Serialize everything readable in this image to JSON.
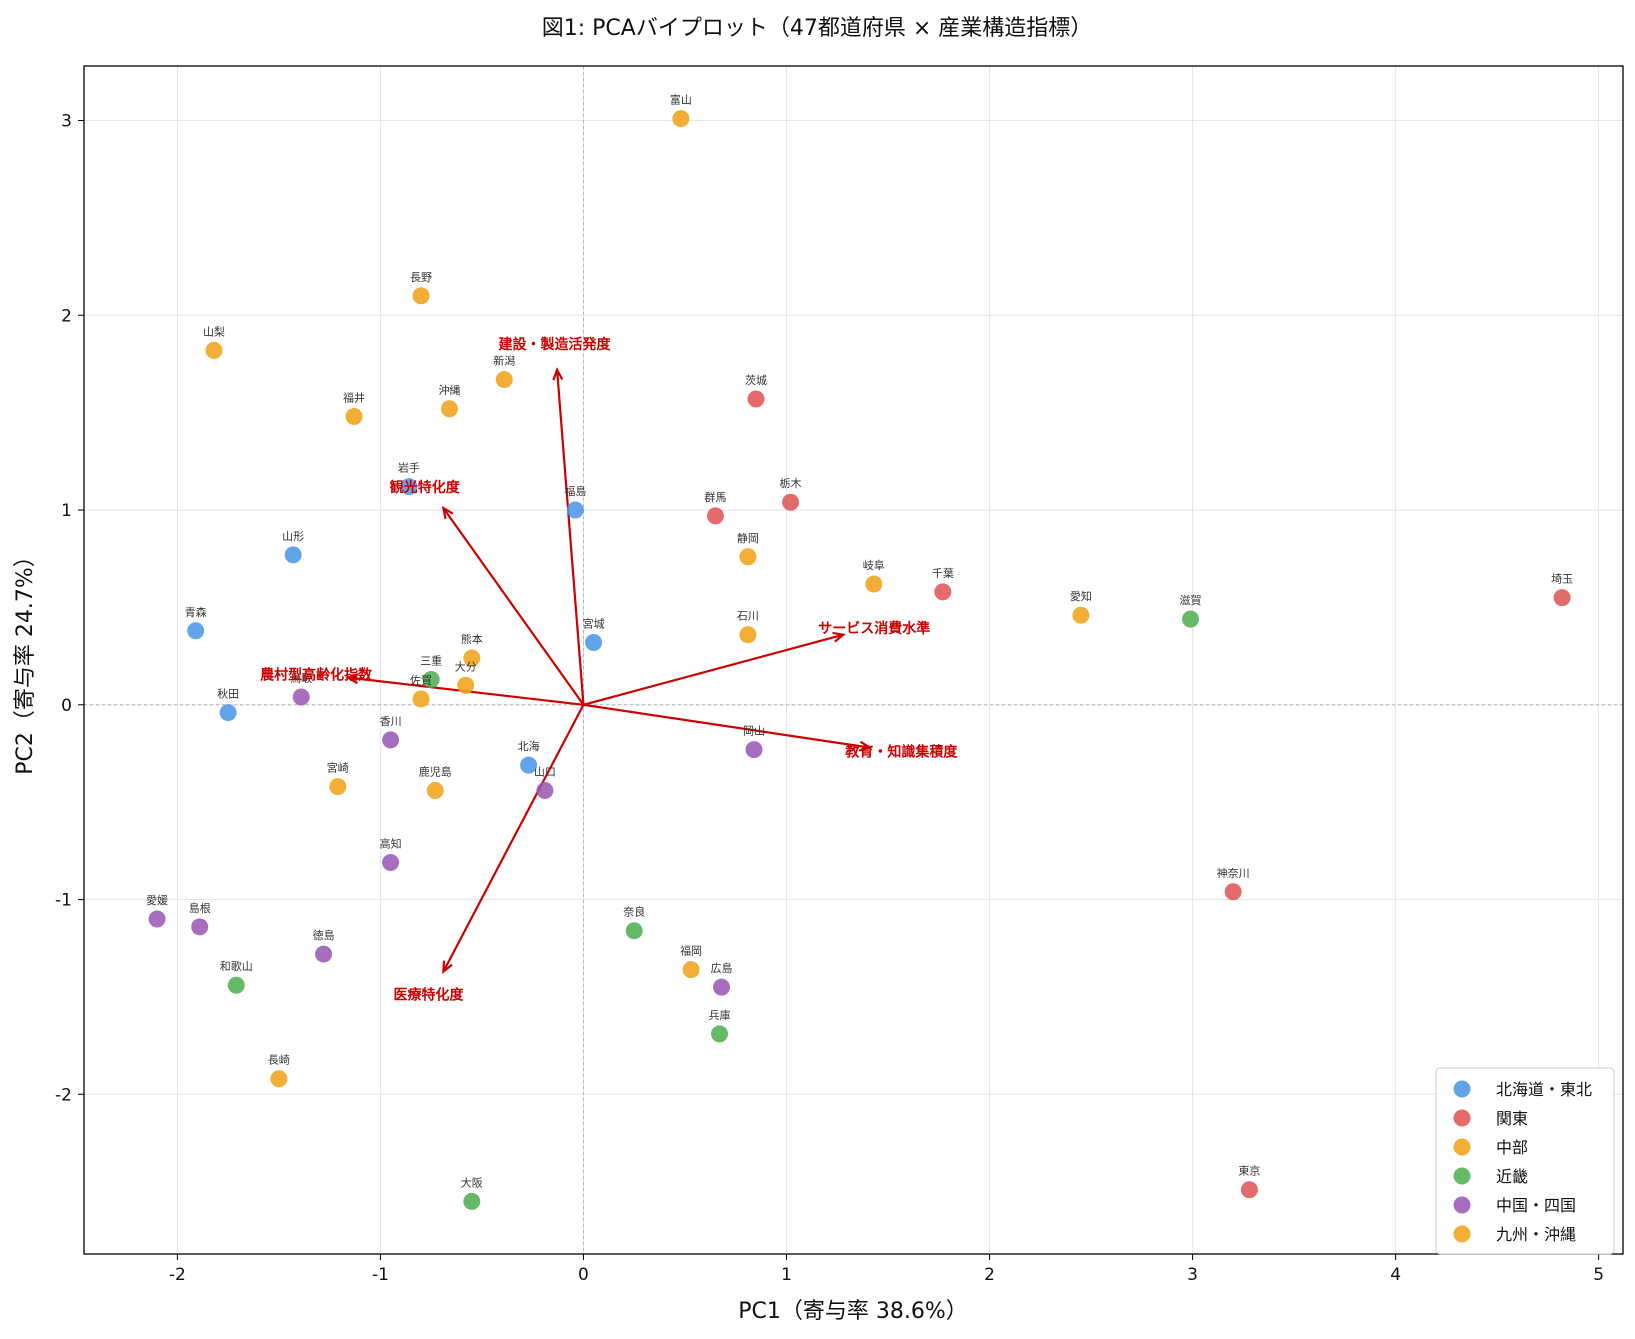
{
  "chart_data": {
    "type": "scatter",
    "title": "図1: PCAバイプロット（47都道府県 × 産業構造指標）",
    "xlabel": "PC1（寄与率 38.6%）",
    "ylabel": "PC2（寄与率 24.7%）",
    "xlim": [
      -2.46,
      5.12
    ],
    "ylim": [
      -2.82,
      3.28
    ],
    "xticks": [
      -2,
      -1,
      0,
      1,
      2,
      3,
      4,
      5
    ],
    "xtick_labels": [
      "-2",
      "-1",
      "0",
      "1",
      "2",
      "3",
      "4",
      "5"
    ],
    "yticks": [
      -2,
      -1,
      0,
      1,
      2,
      3
    ],
    "ytick_labels": [
      "-2",
      "-1",
      "0",
      "1",
      "2",
      "3"
    ],
    "grid": true,
    "reference_lines": {
      "x": 0,
      "y": 0,
      "style": "dashed"
    },
    "legend_position": "bottom-right",
    "series": [
      {
        "name": "北海道・東北",
        "color": "#4c96e6",
        "points": [
          {
            "label": "北海",
            "x": -0.27,
            "y": -0.31
          },
          {
            "label": "青森",
            "x": -1.91,
            "y": 0.38
          },
          {
            "label": "岩手",
            "x": -0.86,
            "y": 1.12
          },
          {
            "label": "宮城",
            "x": 0.05,
            "y": 0.32
          },
          {
            "label": "秋田",
            "x": -1.75,
            "y": -0.04
          },
          {
            "label": "山形",
            "x": -1.43,
            "y": 0.77
          },
          {
            "label": "福島",
            "x": -0.04,
            "y": 1.0
          }
        ]
      },
      {
        "name": "関東",
        "color": "#e05556",
        "points": [
          {
            "label": "茨城",
            "x": 0.85,
            "y": 1.57
          },
          {
            "label": "栃木",
            "x": 1.02,
            "y": 1.04
          },
          {
            "label": "群馬",
            "x": 0.65,
            "y": 0.97
          },
          {
            "label": "埼玉",
            "x": 4.82,
            "y": 0.55
          },
          {
            "label": "千葉",
            "x": 1.77,
            "y": 0.58
          },
          {
            "label": "東京",
            "x": 3.28,
            "y": -2.49
          },
          {
            "label": "神奈川",
            "x": 3.2,
            "y": -0.96
          }
        ]
      },
      {
        "name": "中部",
        "color": "#f0a31a",
        "points": [
          {
            "label": "新潟",
            "x": -0.39,
            "y": 1.67
          },
          {
            "label": "富山",
            "x": 0.48,
            "y": 3.01
          },
          {
            "label": "石川",
            "x": 0.81,
            "y": 0.36
          },
          {
            "label": "福井",
            "x": -1.13,
            "y": 1.48
          },
          {
            "label": "山梨",
            "x": -1.82,
            "y": 1.82
          },
          {
            "label": "長野",
            "x": -0.8,
            "y": 2.1
          },
          {
            "label": "岐阜",
            "x": 1.43,
            "y": 0.62
          },
          {
            "label": "静岡",
            "x": 0.81,
            "y": 0.76
          },
          {
            "label": "愛知",
            "x": 2.45,
            "y": 0.46
          }
        ]
      },
      {
        "name": "近畿",
        "color": "#4fb052",
        "points": [
          {
            "label": "三重",
            "x": -0.75,
            "y": 0.13
          },
          {
            "label": "滋賀",
            "x": 2.99,
            "y": 0.44
          },
          {
            "label": "大阪",
            "x": -0.55,
            "y": -2.55
          },
          {
            "label": "兵庫",
            "x": 0.67,
            "y": -1.69
          },
          {
            "label": "奈良",
            "x": 0.25,
            "y": -1.16
          },
          {
            "label": "和歌山",
            "x": -1.71,
            "y": -1.44
          }
        ]
      },
      {
        "name": "中国・四国",
        "color": "#9b59b6",
        "points": [
          {
            "label": "鳥取",
            "x": -1.39,
            "y": 0.04
          },
          {
            "label": "島根",
            "x": -1.89,
            "y": -1.14
          },
          {
            "label": "岡山",
            "x": 0.84,
            "y": -0.23
          },
          {
            "label": "広島",
            "x": 0.68,
            "y": -1.45
          },
          {
            "label": "山口",
            "x": -0.19,
            "y": -0.44
          },
          {
            "label": "徳島",
            "x": -1.28,
            "y": -1.28
          },
          {
            "label": "香川",
            "x": -0.95,
            "y": -0.18
          },
          {
            "label": "愛媛",
            "x": -2.1,
            "y": -1.1
          },
          {
            "label": "高知",
            "x": -0.95,
            "y": -0.81
          }
        ]
      },
      {
        "name": "九州・沖縄",
        "color": "#f0a31a",
        "points": [
          {
            "label": "福岡",
            "x": 0.53,
            "y": -1.36
          },
          {
            "label": "佐賀",
            "x": -0.8,
            "y": 0.03
          },
          {
            "label": "長崎",
            "x": -1.5,
            "y": -1.92
          },
          {
            "label": "熊本",
            "x": -0.55,
            "y": 0.24
          },
          {
            "label": "大分",
            "x": -0.58,
            "y": 0.1
          },
          {
            "label": "宮崎",
            "x": -1.21,
            "y": -0.42
          },
          {
            "label": "鹿児島",
            "x": -0.73,
            "y": -0.44
          },
          {
            "label": "沖縄",
            "x": -0.66,
            "y": 1.52
          }
        ]
      }
    ],
    "loadings": {
      "color": "#cc0000",
      "arrows": [
        {
          "label": "建設・製造活発度",
          "x": -0.13,
          "y": 1.72
        },
        {
          "label": "観光特化度",
          "x": -0.69,
          "y": 1.01
        },
        {
          "label": "サービス消費水準",
          "x": 1.28,
          "y": 0.36
        },
        {
          "label": "農村型高齢化指数",
          "x": -1.16,
          "y": 0.14
        },
        {
          "label": "教育・知識集積度",
          "x": 1.41,
          "y": -0.22
        },
        {
          "label": "医療特化度",
          "x": -0.69,
          "y": -1.37
        }
      ]
    }
  }
}
